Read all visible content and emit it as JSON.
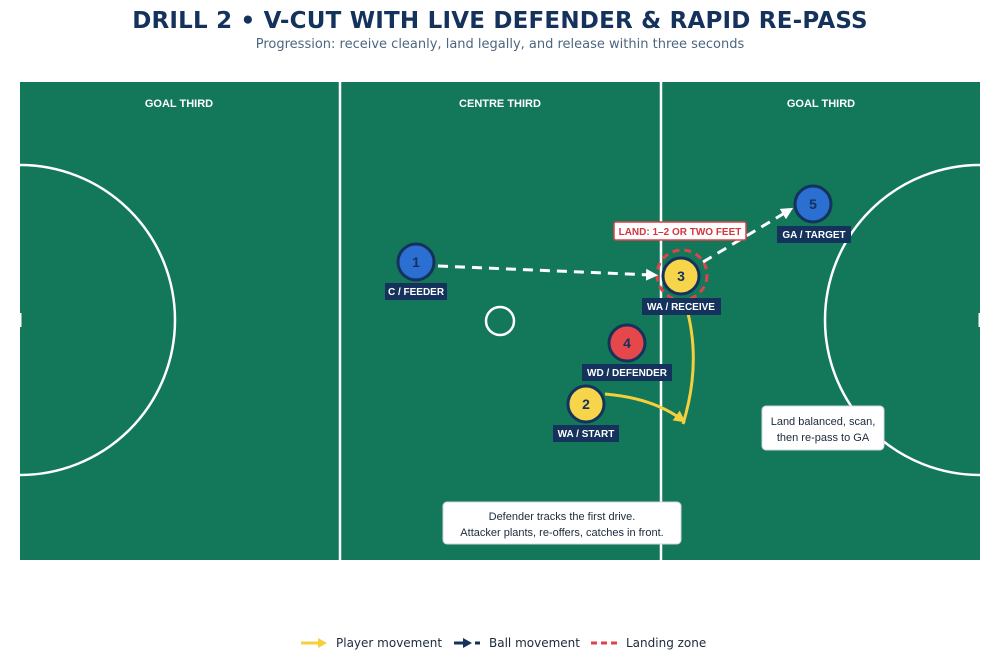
{
  "title": "DRILL 2  •  V-CUT WITH LIVE DEFENDER & RAPID RE-PASS",
  "subtitle": "Progression: receive cleanly, land legally, and release within three seconds",
  "colors": {
    "court": "#13775a",
    "lines": "#ffffff",
    "attacker": "#f7d54a",
    "defender": "#e5474b",
    "teammate": "#2a6fd1",
    "label_bg": "#14325c",
    "player_movement": "#f5cf3c",
    "ball_movement": "#ffffff",
    "landing_zone": "#e0424a"
  },
  "court": {
    "zones": [
      {
        "label": "GOAL THIRD"
      },
      {
        "label": "CENTRE THIRD"
      },
      {
        "label": "GOAL THIRD"
      }
    ]
  },
  "players": [
    {
      "number": "1",
      "label": "C / FEEDER",
      "role": "teammate"
    },
    {
      "number": "2",
      "label": "WA / START",
      "role": "attacker"
    },
    {
      "number": "3",
      "label": "WA / RECEIVE",
      "role": "attacker"
    },
    {
      "number": "4",
      "label": "WD / DEFENDER",
      "role": "defender"
    },
    {
      "number": "5",
      "label": "GA / TARGET",
      "role": "teammate"
    }
  ],
  "annotations": {
    "landing": "LAND: 1–2 OR TWO FEET",
    "note_right": [
      "Land balanced, scan,",
      "then re-pass to GA"
    ],
    "note_bottom": [
      "Defender tracks the first drive.",
      "Attacker plants, re-offers, catches in front."
    ]
  },
  "legend": [
    {
      "label": "Player movement",
      "icon": "yellow-arrow-icon"
    },
    {
      "label": "Ball movement",
      "icon": "dashed-arrow-icon"
    },
    {
      "label": "Landing zone",
      "icon": "dashed-red-line-icon"
    }
  ]
}
